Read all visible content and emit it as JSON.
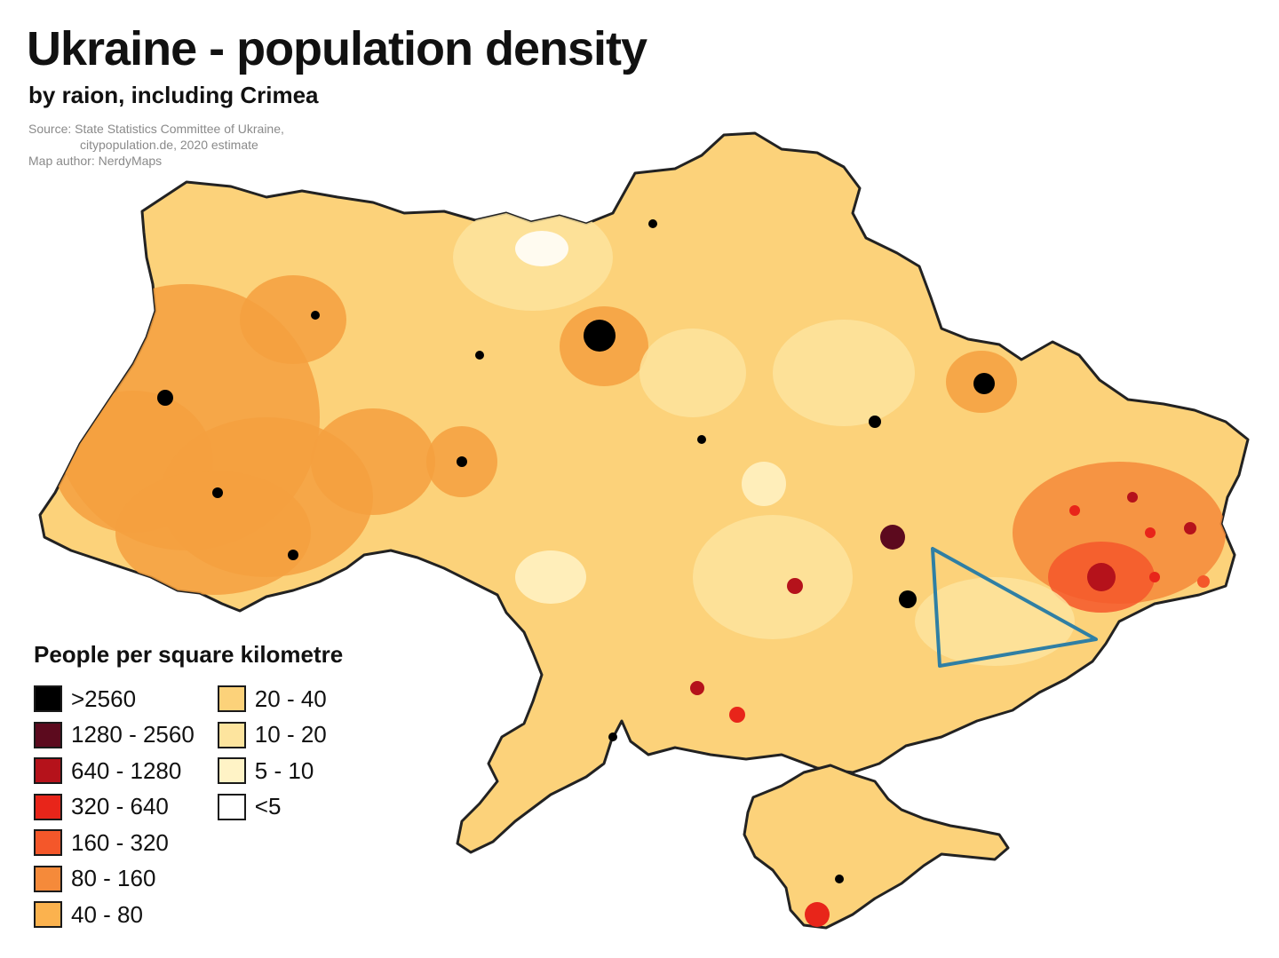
{
  "title": "Ukraine - population density",
  "subtitle": "by raion, including Crimea",
  "source": {
    "line1": "Source: State Statistics Committee of Ukraine,",
    "line2": "citypopulation.de, 2020 estimate",
    "line3": "Map author: NerdyMaps"
  },
  "legend": {
    "title": "People per square kilometre",
    "col1": [
      {
        "label": ">2560",
        "color": "#000000"
      },
      {
        "label": "1280 - 2560",
        "color": "#5c0a1e"
      },
      {
        "label": "640 - 1280",
        "color": "#b5121b"
      },
      {
        "label": "320 - 640",
        "color": "#e8251a"
      },
      {
        "label": "160 - 320",
        "color": "#f4572a"
      },
      {
        "label": "80 - 160",
        "color": "#f58a3a"
      },
      {
        "label": "40 - 80",
        "color": "#fbb24e"
      }
    ],
    "col2": [
      {
        "label": "20 - 40",
        "color": "#fcd27a"
      },
      {
        "label": "10 - 20",
        "color": "#fde49e"
      },
      {
        "label": "5 - 10",
        "color": "#fff3c6"
      },
      {
        "label": "<5",
        "color": "#ffffff"
      }
    ]
  },
  "colors": {
    "base": "#fcd27a",
    "light": "#fde49e",
    "west": "#f5a03f",
    "border": "#222222",
    "triangle": "#2f7fa4"
  }
}
